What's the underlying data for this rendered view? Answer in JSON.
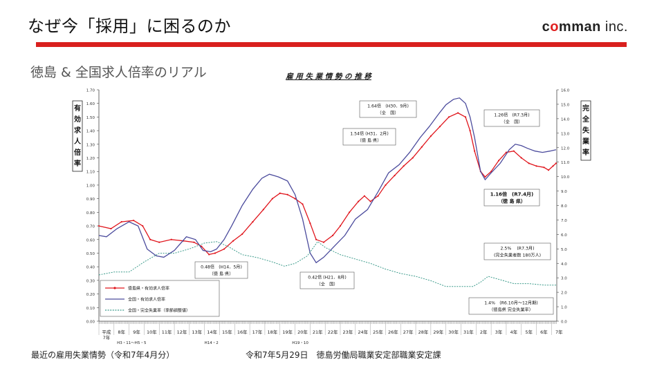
{
  "slide": {
    "title": "なぜ今「採用」に困るのか",
    "logo": {
      "part1": "c",
      "accent": "o",
      "part2": "mman",
      "suffix": " inc."
    },
    "subtitle": "徳島 & 全国求人倍率のリアル",
    "footer_left": "最近の雇用失業情勢（令和7年4月分）",
    "footer_right": "令和7年5月29日　徳島労働局職業安定部職業安定課",
    "accent_color": "#d9201e"
  },
  "chart_data": {
    "type": "line",
    "title": "雇 用 失 業 情 勢 の 推 移",
    "left_axis_label": [
      "有",
      "効",
      "求",
      "人",
      "倍",
      "率"
    ],
    "right_axis_label": [
      "完",
      "全",
      "失",
      "業",
      "率"
    ],
    "left_ylim": [
      0,
      1.7
    ],
    "right_ylim": [
      0,
      16
    ],
    "left_ticks": [
      "0.00",
      "0.10",
      "0.20",
      "0.30",
      "0.40",
      "0.50",
      "0.60",
      "0.70",
      "0.80",
      "0.90",
      "1.00",
      "1.10",
      "1.20",
      "1.30",
      "1.40",
      "1.50",
      "1.60",
      "1.70"
    ],
    "right_ticks": [
      "0.0",
      "1.0",
      "2.0",
      "3.0",
      "4.0",
      "5.0",
      "6.0",
      "7.0",
      "8.0",
      "9.0",
      "10.0",
      "11.0",
      "12.0",
      "13.0",
      "14.0",
      "15.0",
      "16.0"
    ],
    "x_labels": [
      "平成\n7年",
      "8年",
      "9年",
      "10年",
      "11年",
      "12年",
      "13年",
      "14年",
      "15年",
      "16年",
      "17年",
      "18年",
      "19年",
      "20年",
      "21年",
      "22年",
      "23年",
      "24年",
      "25年",
      "26年",
      "27年",
      "28年",
      "29年",
      "30年",
      "31年",
      "2年",
      "3年",
      "4年",
      "5年",
      "6年",
      "7年"
    ],
    "x_range": [
      1995,
      2025.35
    ],
    "era_notes": [
      "H3・11〜H5・5",
      "H14・2",
      "H19・10"
    ],
    "series": [
      {
        "name": "徳島県・有効求人倍率",
        "color": "#e0141b",
        "axis": "left",
        "points": [
          [
            1995,
            0.7
          ],
          [
            1995.8,
            0.68
          ],
          [
            1996.5,
            0.73
          ],
          [
            1997.3,
            0.74
          ],
          [
            1997.9,
            0.7
          ],
          [
            1998.4,
            0.6
          ],
          [
            1999.0,
            0.58
          ],
          [
            1999.8,
            0.6
          ],
          [
            2000.6,
            0.59
          ],
          [
            2001.3,
            0.58
          ],
          [
            2001.8,
            0.55
          ],
          [
            2002.3,
            0.49
          ],
          [
            2002.7,
            0.5
          ],
          [
            2003.3,
            0.53
          ],
          [
            2003.9,
            0.59
          ],
          [
            2004.5,
            0.64
          ],
          [
            2005.2,
            0.73
          ],
          [
            2005.9,
            0.82
          ],
          [
            2006.5,
            0.9
          ],
          [
            2007.0,
            0.94
          ],
          [
            2007.5,
            0.93
          ],
          [
            2008.0,
            0.9
          ],
          [
            2008.5,
            0.86
          ],
          [
            2009.0,
            0.72
          ],
          [
            2009.4,
            0.6
          ],
          [
            2009.9,
            0.58
          ],
          [
            2010.5,
            0.63
          ],
          [
            2011.0,
            0.7
          ],
          [
            2011.6,
            0.8
          ],
          [
            2012.2,
            0.88
          ],
          [
            2012.6,
            0.92
          ],
          [
            2013.0,
            0.88
          ],
          [
            2013.5,
            0.92
          ],
          [
            2014.0,
            1.0
          ],
          [
            2014.6,
            1.07
          ],
          [
            2015.2,
            1.14
          ],
          [
            2015.8,
            1.2
          ],
          [
            2016.4,
            1.28
          ],
          [
            2017.0,
            1.36
          ],
          [
            2017.6,
            1.43
          ],
          [
            2018.2,
            1.5
          ],
          [
            2018.8,
            1.53
          ],
          [
            2019.3,
            1.5
          ],
          [
            2019.6,
            1.4
          ],
          [
            2019.9,
            1.25
          ],
          [
            2020.3,
            1.1
          ],
          [
            2020.6,
            1.06
          ],
          [
            2021.0,
            1.1
          ],
          [
            2021.5,
            1.18
          ],
          [
            2022.0,
            1.24
          ],
          [
            2022.5,
            1.25
          ],
          [
            2023.0,
            1.2
          ],
          [
            2023.5,
            1.16
          ],
          [
            2024.0,
            1.14
          ],
          [
            2024.5,
            1.13
          ],
          [
            2024.8,
            1.11
          ],
          [
            2025.1,
            1.14
          ],
          [
            2025.3,
            1.16
          ]
        ]
      },
      {
        "name": "全国・有効求人倍率",
        "color": "#4a4a9c",
        "axis": "left",
        "points": [
          [
            1995,
            0.63
          ],
          [
            1995.5,
            0.62
          ],
          [
            1996.2,
            0.68
          ],
          [
            1997.0,
            0.73
          ],
          [
            1997.6,
            0.7
          ],
          [
            1998.2,
            0.53
          ],
          [
            1998.8,
            0.48
          ],
          [
            1999.3,
            0.47
          ],
          [
            2000.0,
            0.52
          ],
          [
            2000.8,
            0.62
          ],
          [
            2001.4,
            0.6
          ],
          [
            2001.9,
            0.52
          ],
          [
            2002.4,
            0.51
          ],
          [
            2002.8,
            0.53
          ],
          [
            2003.3,
            0.6
          ],
          [
            2003.8,
            0.7
          ],
          [
            2004.5,
            0.85
          ],
          [
            2005.2,
            0.97
          ],
          [
            2005.8,
            1.05
          ],
          [
            2006.3,
            1.08
          ],
          [
            2006.9,
            1.06
          ],
          [
            2007.5,
            1.03
          ],
          [
            2008.0,
            0.93
          ],
          [
            2008.5,
            0.75
          ],
          [
            2009.0,
            0.5
          ],
          [
            2009.4,
            0.43
          ],
          [
            2009.9,
            0.47
          ],
          [
            2010.6,
            0.55
          ],
          [
            2011.3,
            0.63
          ],
          [
            2012.0,
            0.75
          ],
          [
            2012.8,
            0.82
          ],
          [
            2013.5,
            0.95
          ],
          [
            2014.2,
            1.09
          ],
          [
            2014.9,
            1.15
          ],
          [
            2015.6,
            1.24
          ],
          [
            2016.3,
            1.35
          ],
          [
            2016.9,
            1.43
          ],
          [
            2017.5,
            1.52
          ],
          [
            2018.0,
            1.59
          ],
          [
            2018.5,
            1.63
          ],
          [
            2018.9,
            1.64
          ],
          [
            2019.3,
            1.6
          ],
          [
            2019.6,
            1.5
          ],
          [
            2019.9,
            1.35
          ],
          [
            2020.3,
            1.1
          ],
          [
            2020.6,
            1.04
          ],
          [
            2021.0,
            1.09
          ],
          [
            2021.6,
            1.16
          ],
          [
            2022.2,
            1.26
          ],
          [
            2022.6,
            1.3
          ],
          [
            2023.0,
            1.29
          ],
          [
            2023.4,
            1.27
          ],
          [
            2023.9,
            1.25
          ],
          [
            2024.4,
            1.24
          ],
          [
            2024.9,
            1.25
          ],
          [
            2025.3,
            1.26
          ]
        ]
      },
      {
        "name": "全国・完全失業率（季節調整値）",
        "color": "#3a9a8a",
        "axis": "right",
        "dashed": true,
        "points": [
          [
            1995,
            3.2
          ],
          [
            1996.0,
            3.4
          ],
          [
            1997.0,
            3.4
          ],
          [
            1998.0,
            4.1
          ],
          [
            1999.0,
            4.7
          ],
          [
            2000.0,
            4.7
          ],
          [
            2001.0,
            5.0
          ],
          [
            2002.0,
            5.4
          ],
          [
            2002.8,
            5.5
          ],
          [
            2003.5,
            5.2
          ],
          [
            2004.5,
            4.6
          ],
          [
            2005.5,
            4.4
          ],
          [
            2006.5,
            4.1
          ],
          [
            2007.3,
            3.8
          ],
          [
            2008.0,
            4.0
          ],
          [
            2008.8,
            4.5
          ],
          [
            2009.5,
            5.5
          ],
          [
            2010.0,
            5.1
          ],
          [
            2011.0,
            4.6
          ],
          [
            2012.0,
            4.3
          ],
          [
            2013.0,
            4.0
          ],
          [
            2014.0,
            3.6
          ],
          [
            2015.0,
            3.3
          ],
          [
            2016.0,
            3.1
          ],
          [
            2017.0,
            2.8
          ],
          [
            2018.0,
            2.4
          ],
          [
            2019.0,
            2.4
          ],
          [
            2019.8,
            2.4
          ],
          [
            2020.3,
            2.7
          ],
          [
            2020.8,
            3.1
          ],
          [
            2021.5,
            2.9
          ],
          [
            2022.5,
            2.6
          ],
          [
            2023.5,
            2.6
          ],
          [
            2024.5,
            2.5
          ],
          [
            2025.3,
            2.5
          ]
        ]
      }
    ],
    "annotations": [
      {
        "line1": "1.64倍　(H30．9月)",
        "line2": "（全　国）",
        "bold": false
      },
      {
        "line1": "1.54倍 (H31．2月)",
        "line2": "（徳 島 県）",
        "bold": false
      },
      {
        "line1": "1.26倍　(R7.3月)",
        "line2": "（全　国）",
        "bold": false
      },
      {
        "line1": "1.16倍　(R7.4月)",
        "line2": "（徳 島 県）",
        "bold": true
      },
      {
        "line1": "2.5%　 (R7.3月)",
        "line2": "(完全失業者数 180万人)",
        "bold": false
      },
      {
        "line1": "0.48倍　(H14．5月)",
        "line2": "（徳 島 県）",
        "bold": false
      },
      {
        "line1": "0.42倍 (H21．8月)",
        "line2": "（全　国）",
        "bold": false
      },
      {
        "line1": "1.4%　(R6.10月～12月期)",
        "line2": "（徳島県 完全失業率）",
        "bold": false
      }
    ],
    "grid": false,
    "legend_position": "lower-left"
  }
}
